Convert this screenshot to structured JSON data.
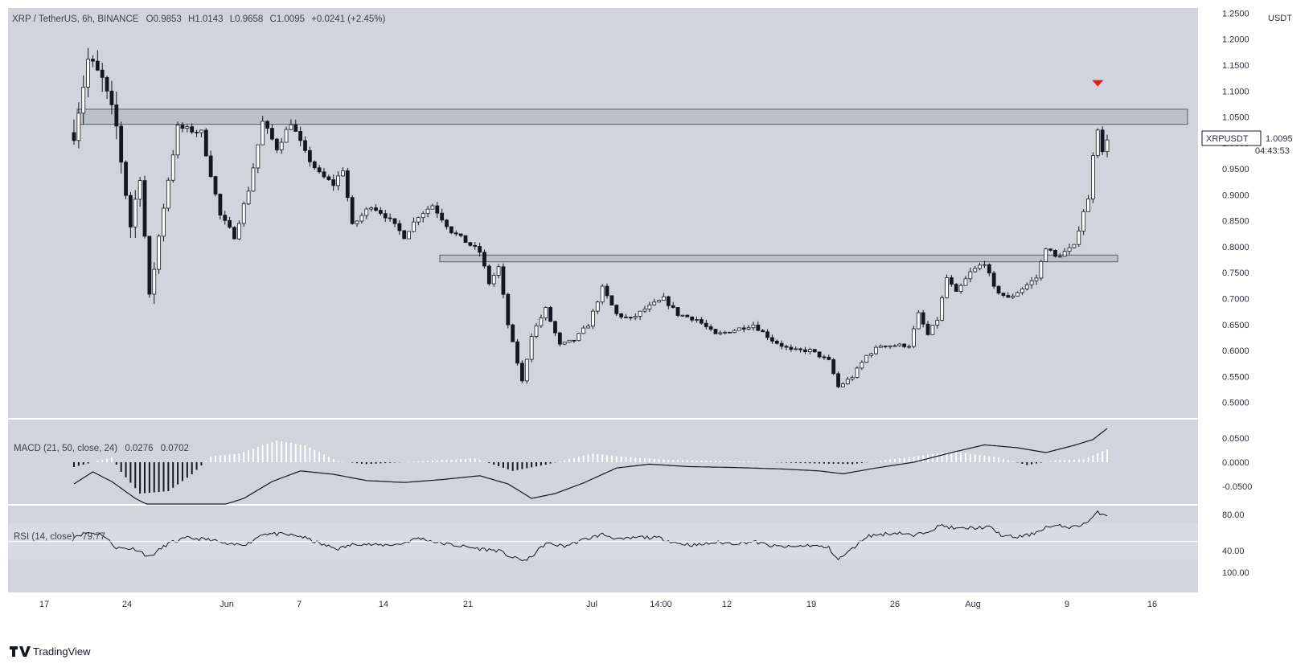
{
  "header": {
    "symbol": "XRP / TetherUS, 6h, BINANCE",
    "o_label": "O",
    "o_value": "0.9853",
    "h_label": "H",
    "h_value": "1.0143",
    "l_label": "L",
    "l_value": "0.9658",
    "c_label": "C",
    "c_value": "1.0095",
    "change": "+0.0241 (+2.45%)"
  },
  "price_axis": {
    "unit": "USDT",
    "ticks": [
      "1.2500",
      "1.2000",
      "1.1500",
      "1.1000",
      "1.0500",
      "1.0000",
      "0.9500",
      "0.9000",
      "0.8500",
      "0.8000",
      "0.7500",
      "0.7000",
      "0.6500",
      "0.6000",
      "0.5500",
      "0.5000"
    ]
  },
  "last_price": {
    "symbol": "XRPUSDT",
    "value": "1.0095",
    "countdown": "04:43:53"
  },
  "time_axis": {
    "ticks": [
      "17",
      "24",
      "Jun",
      "7",
      "14",
      "21",
      "Jul",
      "14:00",
      "12",
      "19",
      "26",
      "Aug",
      "9",
      "16"
    ]
  },
  "macd": {
    "label": "MACD (21, 50, close, 24)",
    "value1": "0.0276",
    "value2": "0.0702",
    "ticks": [
      "0.0500",
      "0.0000",
      "-0.0500"
    ]
  },
  "rsi": {
    "label": "RSI (14, close)",
    "value": "79.77",
    "ticks": [
      "80.00",
      "40.00",
      "100.00"
    ]
  },
  "brand": {
    "name": "TradingView"
  },
  "colors": {
    "chart_bg": "#d1d4dc",
    "candle": "#131722",
    "zone_fill": "#b8bcc5",
    "zone_stroke": "#595d66",
    "marker": "#e41b17",
    "macd_pos": "#ffffff",
    "macd_neg": "#131722"
  },
  "chart_data": {
    "type": "candlestick",
    "timeframe": "6h",
    "ylim": [
      0.47,
      1.26
    ],
    "resistance_zones": [
      {
        "low": 1.036,
        "high": 1.065
      },
      {
        "low": 0.771,
        "high": 0.784
      }
    ],
    "bearish_marker_price": 1.115,
    "path": [
      {
        "t": 0,
        "p": 1.02
      },
      {
        "t": 3,
        "p": 1.16
      },
      {
        "t": 6,
        "p": 1.12
      },
      {
        "t": 9,
        "p": 1.03
      },
      {
        "t": 12,
        "p": 0.84
      },
      {
        "t": 14,
        "p": 0.94
      },
      {
        "t": 16,
        "p": 0.7
      },
      {
        "t": 19,
        "p": 0.88
      },
      {
        "t": 22,
        "p": 1.03
      },
      {
        "t": 27,
        "p": 1.02
      },
      {
        "t": 31,
        "p": 0.86
      },
      {
        "t": 34,
        "p": 0.82
      },
      {
        "t": 37,
        "p": 0.91
      },
      {
        "t": 40,
        "p": 1.04
      },
      {
        "t": 43,
        "p": 0.99
      },
      {
        "t": 46,
        "p": 1.04
      },
      {
        "t": 49,
        "p": 0.98
      },
      {
        "t": 52,
        "p": 0.94
      },
      {
        "t": 55,
        "p": 0.92
      },
      {
        "t": 57,
        "p": 0.95
      },
      {
        "t": 59,
        "p": 0.84
      },
      {
        "t": 63,
        "p": 0.88
      },
      {
        "t": 66,
        "p": 0.86
      },
      {
        "t": 70,
        "p": 0.82
      },
      {
        "t": 73,
        "p": 0.86
      },
      {
        "t": 76,
        "p": 0.88
      },
      {
        "t": 80,
        "p": 0.83
      },
      {
        "t": 83,
        "p": 0.81
      },
      {
        "t": 86,
        "p": 0.79
      },
      {
        "t": 88,
        "p": 0.73
      },
      {
        "t": 90,
        "p": 0.76
      },
      {
        "t": 92,
        "p": 0.65
      },
      {
        "t": 95,
        "p": 0.54
      },
      {
        "t": 97,
        "p": 0.63
      },
      {
        "t": 100,
        "p": 0.68
      },
      {
        "t": 103,
        "p": 0.61
      },
      {
        "t": 106,
        "p": 0.62
      },
      {
        "t": 109,
        "p": 0.65
      },
      {
        "t": 112,
        "p": 0.72
      },
      {
        "t": 115,
        "p": 0.67
      },
      {
        "t": 118,
        "p": 0.66
      },
      {
        "t": 121,
        "p": 0.68
      },
      {
        "t": 125,
        "p": 0.7
      },
      {
        "t": 128,
        "p": 0.67
      },
      {
        "t": 132,
        "p": 0.66
      },
      {
        "t": 136,
        "p": 0.63
      },
      {
        "t": 140,
        "p": 0.64
      },
      {
        "t": 144,
        "p": 0.65
      },
      {
        "t": 148,
        "p": 0.62
      },
      {
        "t": 152,
        "p": 0.6
      },
      {
        "t": 156,
        "p": 0.6
      },
      {
        "t": 160,
        "p": 0.58
      },
      {
        "t": 162,
        "p": 0.53
      },
      {
        "t": 165,
        "p": 0.55
      },
      {
        "t": 168,
        "p": 0.59
      },
      {
        "t": 171,
        "p": 0.61
      },
      {
        "t": 174,
        "p": 0.61
      },
      {
        "t": 177,
        "p": 0.61
      },
      {
        "t": 179,
        "p": 0.67
      },
      {
        "t": 181,
        "p": 0.63
      },
      {
        "t": 183,
        "p": 0.66
      },
      {
        "t": 185,
        "p": 0.74
      },
      {
        "t": 187,
        "p": 0.71
      },
      {
        "t": 190,
        "p": 0.75
      },
      {
        "t": 193,
        "p": 0.77
      },
      {
        "t": 195,
        "p": 0.72
      },
      {
        "t": 198,
        "p": 0.7
      },
      {
        "t": 201,
        "p": 0.72
      },
      {
        "t": 204,
        "p": 0.74
      },
      {
        "t": 206,
        "p": 0.8
      },
      {
        "t": 208,
        "p": 0.78
      },
      {
        "t": 210,
        "p": 0.79
      },
      {
        "t": 212,
        "p": 0.8
      },
      {
        "t": 214,
        "p": 0.87
      },
      {
        "t": 215,
        "p": 0.89
      },
      {
        "t": 216,
        "p": 0.98
      },
      {
        "t": 217,
        "p": 1.03
      },
      {
        "t": 218,
        "p": 0.98
      },
      {
        "t": 219,
        "p": 1.01
      }
    ],
    "macd_line": [
      {
        "t": 0,
        "v": -0.045
      },
      {
        "t": 4,
        "v": -0.02
      },
      {
        "t": 8,
        "v": -0.04
      },
      {
        "t": 13,
        "v": -0.075
      },
      {
        "t": 20,
        "v": -0.11
      },
      {
        "t": 28,
        "v": -0.1
      },
      {
        "t": 36,
        "v": -0.075
      },
      {
        "t": 42,
        "v": -0.04
      },
      {
        "t": 48,
        "v": -0.018
      },
      {
        "t": 55,
        "v": -0.025
      },
      {
        "t": 62,
        "v": -0.038
      },
      {
        "t": 70,
        "v": -0.042
      },
      {
        "t": 78,
        "v": -0.036
      },
      {
        "t": 86,
        "v": -0.028
      },
      {
        "t": 92,
        "v": -0.045
      },
      {
        "t": 97,
        "v": -0.075
      },
      {
        "t": 102,
        "v": -0.065
      },
      {
        "t": 108,
        "v": -0.043
      },
      {
        "t": 115,
        "v": -0.012
      },
      {
        "t": 122,
        "v": -0.004
      },
      {
        "t": 130,
        "v": -0.009
      },
      {
        "t": 140,
        "v": -0.011
      },
      {
        "t": 150,
        "v": -0.014
      },
      {
        "t": 158,
        "v": -0.018
      },
      {
        "t": 163,
        "v": -0.024
      },
      {
        "t": 170,
        "v": -0.012
      },
      {
        "t": 178,
        "v": 0.0
      },
      {
        "t": 186,
        "v": 0.02
      },
      {
        "t": 193,
        "v": 0.036
      },
      {
        "t": 200,
        "v": 0.03
      },
      {
        "t": 206,
        "v": 0.02
      },
      {
        "t": 212,
        "v": 0.035
      },
      {
        "t": 216,
        "v": 0.047
      },
      {
        "t": 219,
        "v": 0.07
      }
    ],
    "macd_hist": [
      {
        "t": 0,
        "v": -0.01
      },
      {
        "t": 8,
        "v": 0.01
      },
      {
        "t": 10,
        "v": -0.02
      },
      {
        "t": 14,
        "v": -0.065
      },
      {
        "t": 20,
        "v": -0.06
      },
      {
        "t": 25,
        "v": -0.025
      },
      {
        "t": 29,
        "v": 0.012
      },
      {
        "t": 35,
        "v": 0.018
      },
      {
        "t": 43,
        "v": 0.045
      },
      {
        "t": 49,
        "v": 0.035
      },
      {
        "t": 56,
        "v": 0.002
      },
      {
        "t": 62,
        "v": -0.004
      },
      {
        "t": 75,
        "v": 0.003
      },
      {
        "t": 85,
        "v": 0.008
      },
      {
        "t": 93,
        "v": -0.018
      },
      {
        "t": 100,
        "v": -0.005
      },
      {
        "t": 110,
        "v": 0.018
      },
      {
        "t": 118,
        "v": 0.01
      },
      {
        "t": 126,
        "v": 0.005
      },
      {
        "t": 140,
        "v": 0.002
      },
      {
        "t": 155,
        "v": -0.002
      },
      {
        "t": 165,
        "v": -0.004
      },
      {
        "t": 175,
        "v": 0.008
      },
      {
        "t": 186,
        "v": 0.022
      },
      {
        "t": 196,
        "v": 0.01
      },
      {
        "t": 202,
        "v": -0.006
      },
      {
        "t": 208,
        "v": 0.004
      },
      {
        "t": 214,
        "v": 0.006
      },
      {
        "t": 219,
        "v": 0.027
      }
    ],
    "rsi_path": [
      {
        "t": 0,
        "v": 56
      },
      {
        "t": 3,
        "v": 60
      },
      {
        "t": 6,
        "v": 58
      },
      {
        "t": 9,
        "v": 43
      },
      {
        "t": 13,
        "v": 42
      },
      {
        "t": 16,
        "v": 33
      },
      {
        "t": 20,
        "v": 48
      },
      {
        "t": 24,
        "v": 54
      },
      {
        "t": 29,
        "v": 52
      },
      {
        "t": 33,
        "v": 46
      },
      {
        "t": 37,
        "v": 48
      },
      {
        "t": 40,
        "v": 59
      },
      {
        "t": 44,
        "v": 58
      },
      {
        "t": 48,
        "v": 56
      },
      {
        "t": 53,
        "v": 46
      },
      {
        "t": 56,
        "v": 42
      },
      {
        "t": 60,
        "v": 48
      },
      {
        "t": 64,
        "v": 46
      },
      {
        "t": 69,
        "v": 47
      },
      {
        "t": 73,
        "v": 54
      },
      {
        "t": 78,
        "v": 48
      },
      {
        "t": 82,
        "v": 45
      },
      {
        "t": 86,
        "v": 42
      },
      {
        "t": 90,
        "v": 40
      },
      {
        "t": 93,
        "v": 32
      },
      {
        "t": 96,
        "v": 29
      },
      {
        "t": 100,
        "v": 48
      },
      {
        "t": 104,
        "v": 45
      },
      {
        "t": 108,
        "v": 52
      },
      {
        "t": 112,
        "v": 58
      },
      {
        "t": 116,
        "v": 52
      },
      {
        "t": 120,
        "v": 55
      },
      {
        "t": 124,
        "v": 54
      },
      {
        "t": 128,
        "v": 48
      },
      {
        "t": 132,
        "v": 46
      },
      {
        "t": 136,
        "v": 49
      },
      {
        "t": 140,
        "v": 48
      },
      {
        "t": 144,
        "v": 50
      },
      {
        "t": 148,
        "v": 45
      },
      {
        "t": 152,
        "v": 44
      },
      {
        "t": 156,
        "v": 46
      },
      {
        "t": 160,
        "v": 43
      },
      {
        "t": 162,
        "v": 30
      },
      {
        "t": 165,
        "v": 42
      },
      {
        "t": 168,
        "v": 56
      },
      {
        "t": 171,
        "v": 58
      },
      {
        "t": 175,
        "v": 60
      },
      {
        "t": 178,
        "v": 56
      },
      {
        "t": 181,
        "v": 62
      },
      {
        "t": 184,
        "v": 68
      },
      {
        "t": 187,
        "v": 64
      },
      {
        "t": 190,
        "v": 65
      },
      {
        "t": 194,
        "v": 66
      },
      {
        "t": 197,
        "v": 56
      },
      {
        "t": 200,
        "v": 55
      },
      {
        "t": 203,
        "v": 58
      },
      {
        "t": 206,
        "v": 66
      },
      {
        "t": 209,
        "v": 67
      },
      {
        "t": 212,
        "v": 66
      },
      {
        "t": 215,
        "v": 72
      },
      {
        "t": 217,
        "v": 82
      },
      {
        "t": 219,
        "v": 79.77
      }
    ]
  }
}
